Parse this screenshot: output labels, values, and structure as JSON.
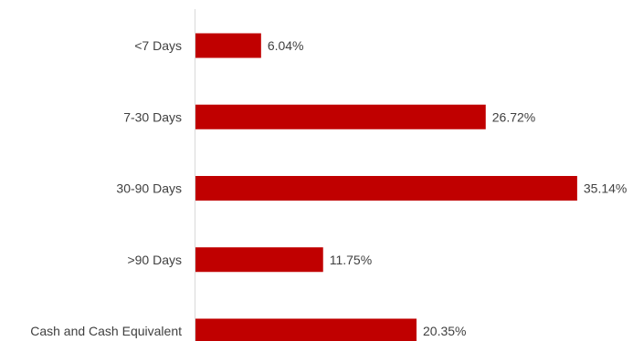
{
  "chart_data": {
    "type": "bar",
    "orientation": "horizontal",
    "categories": [
      "<7 Days",
      "7-30 Days",
      "30-90 Days",
      ">90 Days",
      "Cash and Cash Equivalent"
    ],
    "values": [
      6.04,
      26.72,
      35.14,
      11.75,
      20.35
    ],
    "value_labels": [
      "6.04%",
      "26.72%",
      "35.14%",
      "11.75%",
      "20.35%"
    ],
    "title": "",
    "xlabel": "",
    "ylabel": "",
    "xlim": [
      0,
      37
    ],
    "grid": false,
    "legend": "none",
    "bar_color": "#c00000",
    "axis_color": "#d9d9d9",
    "text_color": "#404040"
  }
}
